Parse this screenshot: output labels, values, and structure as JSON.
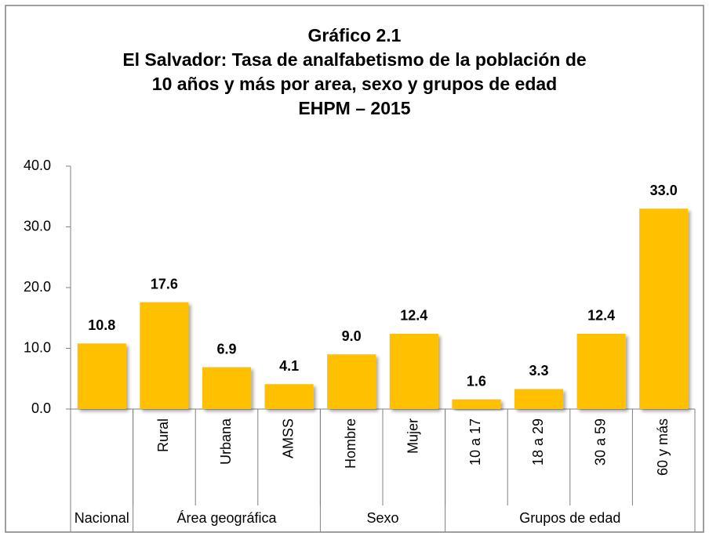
{
  "chart_data": {
    "type": "bar",
    "title": [
      "Gráfico 2.1",
      "El Salvador: Tasa de analfabetismo de la población de",
      "10 años y más por area, sexo y grupos de edad",
      "EHPM – 2015"
    ],
    "categories": [
      null,
      "Rural",
      "Urbana",
      "AMSS",
      "Hombre",
      "Mujer",
      "10 a 17",
      "18 a 29",
      "30 a 59",
      "60 y más"
    ],
    "groups": [
      {
        "name": "Nacional",
        "size": 1
      },
      {
        "name": "Área geográfica",
        "size": 3
      },
      {
        "name": "Sexo",
        "size": 2
      },
      {
        "name": "Grupos de edad",
        "size": 4
      }
    ],
    "values": [
      10.8,
      17.6,
      6.9,
      4.1,
      9.0,
      12.4,
      1.6,
      3.3,
      12.4,
      33.0
    ],
    "value_labels": [
      "10.8",
      "17.6",
      "6.9",
      "4.1",
      "9.0",
      "12.4",
      "1.6",
      "3.3",
      "12.4",
      "33.0"
    ],
    "color": "#ffc000",
    "ylim": [
      0,
      40
    ],
    "yticks": [
      {
        "value": 0,
        "label": "0.0"
      },
      {
        "value": 10,
        "label": "10.0"
      },
      {
        "value": 20,
        "label": "20.0"
      },
      {
        "value": 30,
        "label": "30.0"
      },
      {
        "value": 40,
        "label": "40.0"
      }
    ],
    "grid": false
  }
}
